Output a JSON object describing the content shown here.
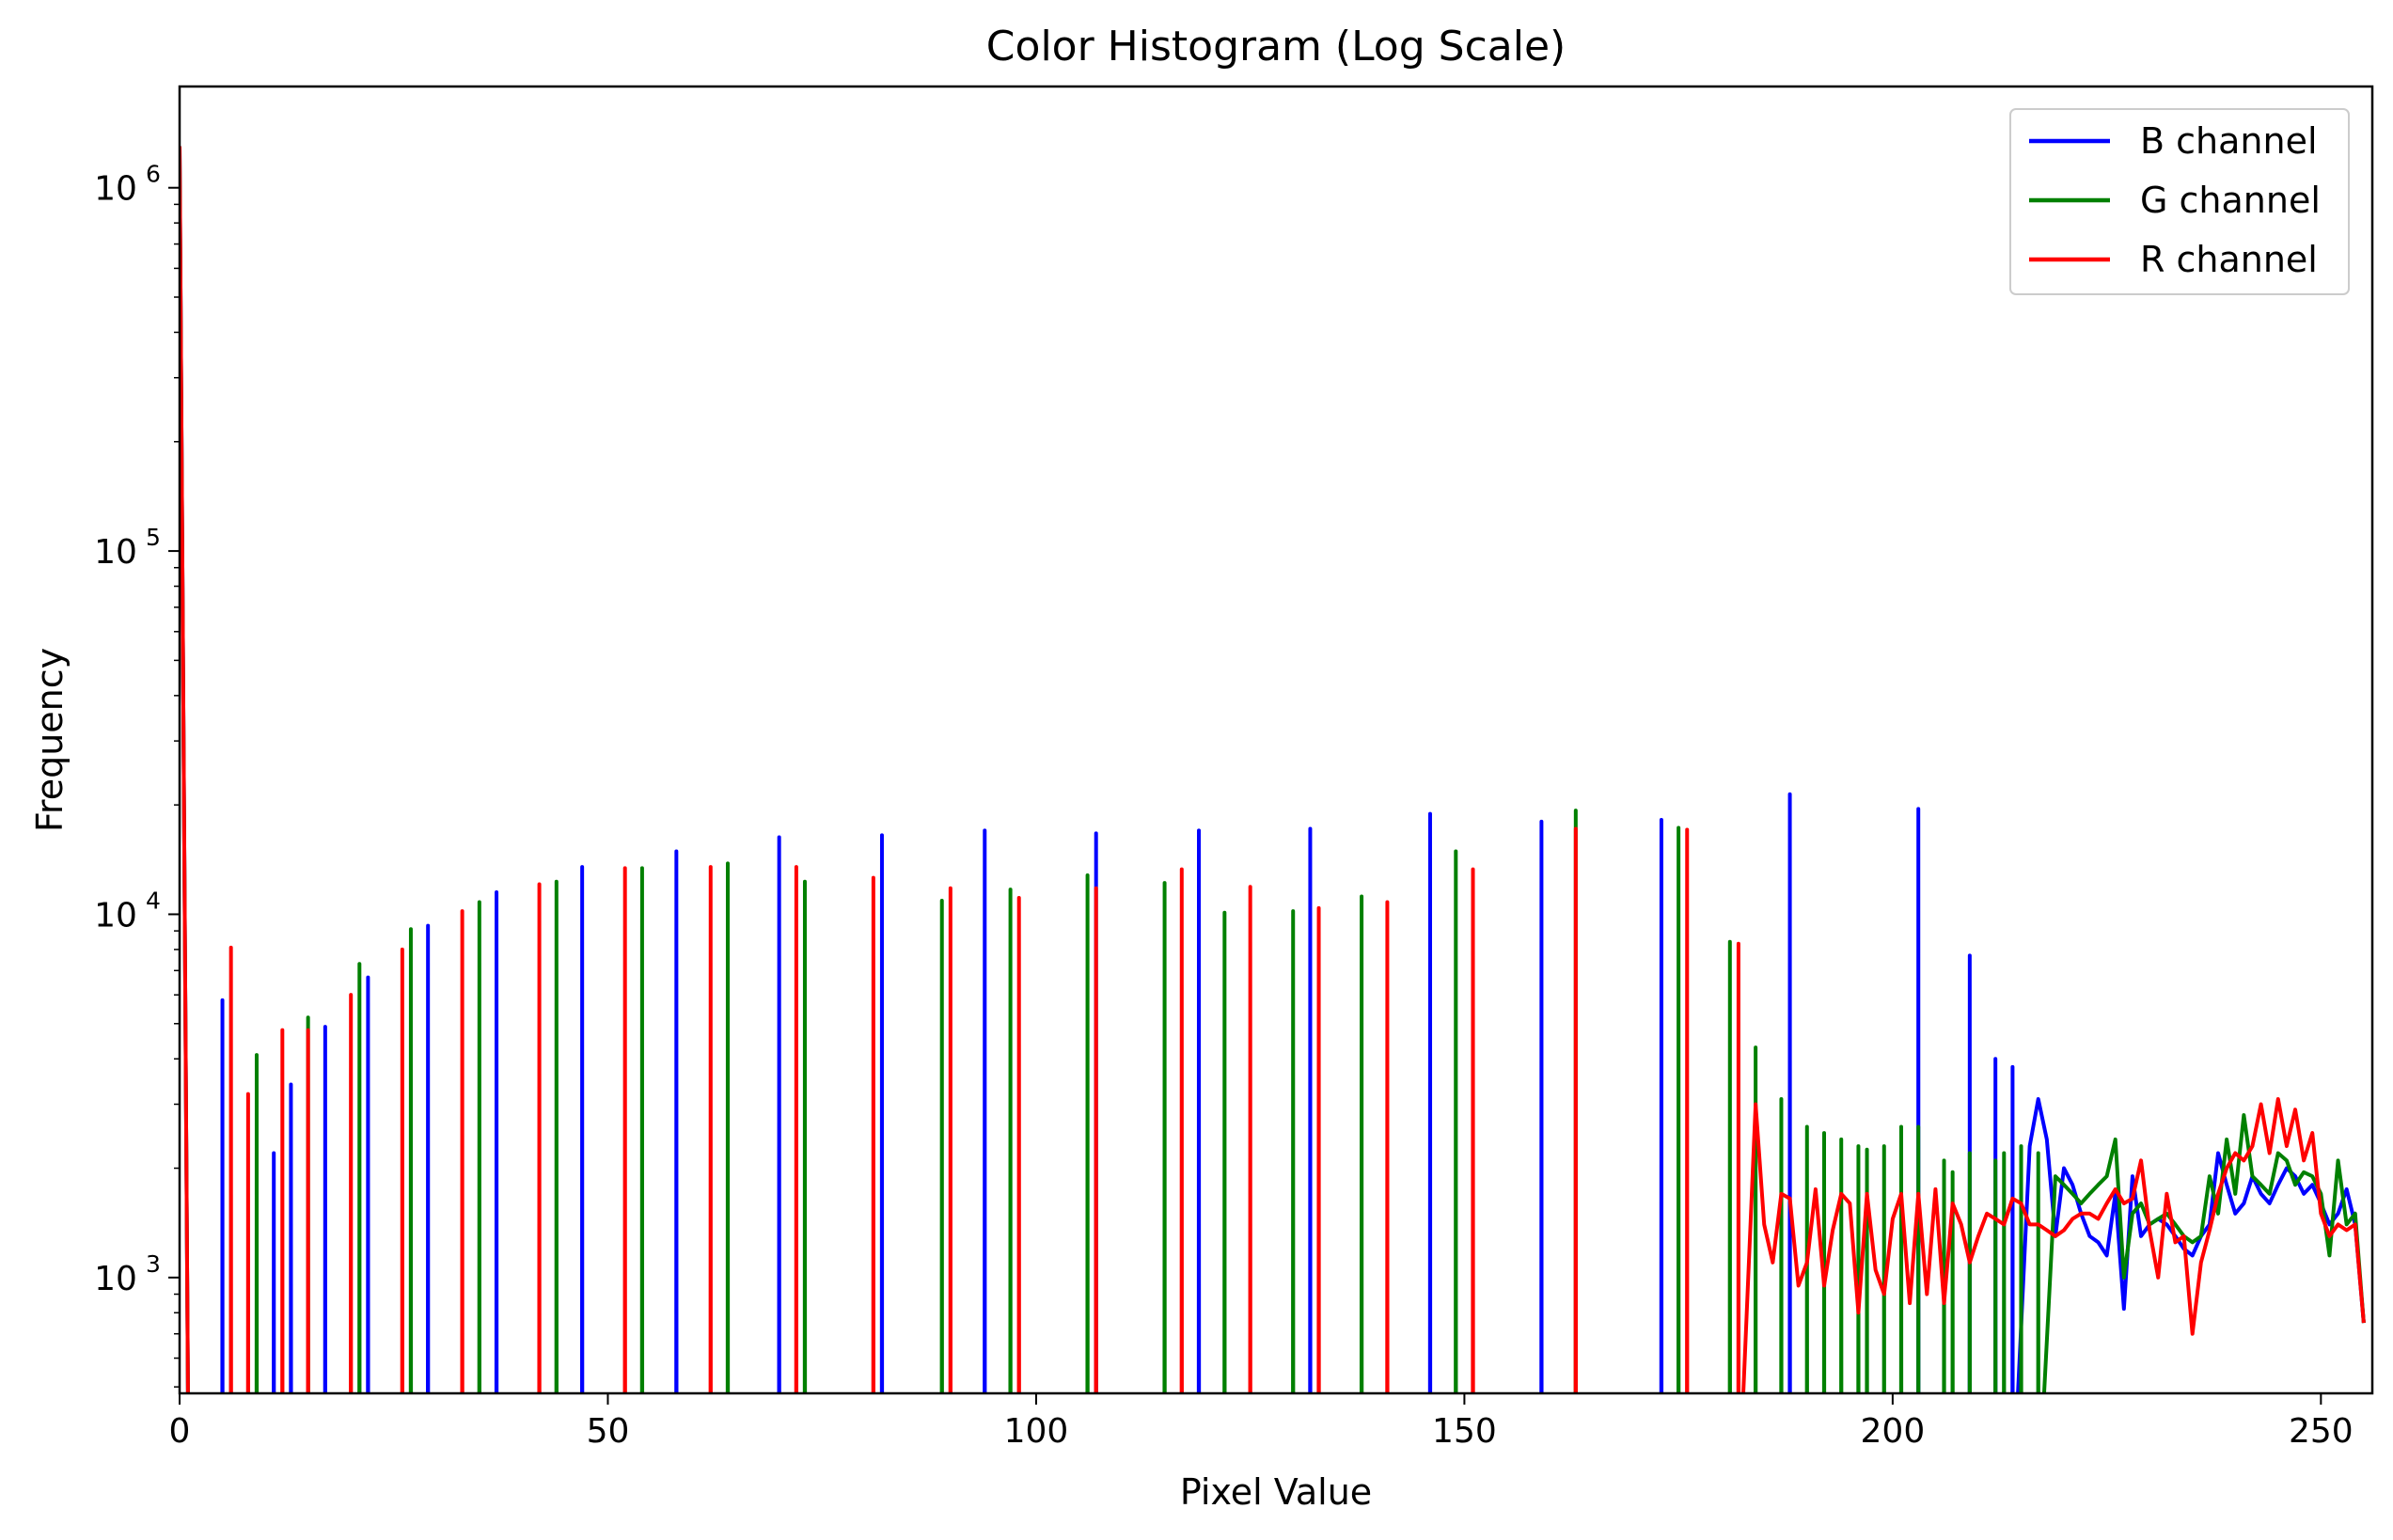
{
  "chart_data": {
    "type": "line",
    "title": "Color Histogram (Log Scale)",
    "xlabel": "Pixel Value",
    "ylabel": "Frequency",
    "xlim": [
      0,
      256
    ],
    "ylim": [
      480,
      1900000
    ],
    "yscale": "log",
    "grid": false,
    "legend_position": "top-right",
    "xticks": [
      0,
      50,
      100,
      150,
      200,
      250
    ],
    "xtick_labels": [
      "0",
      "50",
      "100",
      "150",
      "200",
      "250"
    ],
    "yticks": [
      1000,
      10000,
      100000,
      1000000
    ],
    "ytick_labels": [
      {
        "base": "10",
        "exp": "3"
      },
      {
        "base": "10",
        "exp": "4"
      },
      {
        "base": "10",
        "exp": "5"
      },
      {
        "base": "10",
        "exp": "6"
      }
    ],
    "series": [
      {
        "name": "B channel",
        "color": "#0000ff",
        "head": [
          [
            0,
            1300000
          ],
          [
            1,
            400
          ]
        ],
        "spikes": [
          [
            5,
            5800
          ],
          [
            11,
            2200
          ],
          [
            13,
            3400
          ],
          [
            17,
            4900
          ],
          [
            22,
            6700
          ],
          [
            29,
            9300
          ],
          [
            37,
            11500
          ],
          [
            47,
            13500
          ],
          [
            58,
            14900
          ],
          [
            70,
            16300
          ],
          [
            82,
            16500
          ],
          [
            94,
            17000
          ],
          [
            107,
            16700
          ],
          [
            119,
            17000
          ],
          [
            132,
            17200
          ],
          [
            146,
            18900
          ],
          [
            159,
            18000
          ],
          [
            173,
            18200
          ],
          [
            188,
            21400
          ],
          [
            203,
            19500
          ],
          [
            209,
            7700
          ],
          [
            212,
            4000
          ],
          [
            214,
            3800
          ]
        ],
        "tail": [
          [
            216,
            2300
          ],
          [
            217,
            3100
          ],
          [
            218,
            2400
          ],
          [
            219,
            1300
          ],
          [
            220,
            2000
          ],
          [
            221,
            1800
          ],
          [
            222,
            1500
          ],
          [
            223,
            1300
          ],
          [
            224,
            1250
          ],
          [
            225,
            1150
          ],
          [
            226,
            1700
          ],
          [
            227,
            820
          ],
          [
            228,
            1900
          ],
          [
            229,
            1300
          ],
          [
            230,
            1400
          ],
          [
            231,
            1450
          ],
          [
            232,
            1400
          ],
          [
            233,
            1300
          ],
          [
            234,
            1200
          ],
          [
            235,
            1150
          ],
          [
            236,
            1300
          ],
          [
            237,
            1400
          ],
          [
            238,
            2200
          ],
          [
            239,
            1800
          ],
          [
            240,
            1500
          ],
          [
            241,
            1600
          ],
          [
            242,
            1900
          ],
          [
            243,
            1700
          ],
          [
            244,
            1600
          ],
          [
            245,
            1800
          ],
          [
            246,
            2000
          ],
          [
            247,
            1900
          ],
          [
            248,
            1700
          ],
          [
            249,
            1800
          ],
          [
            250,
            1600
          ],
          [
            251,
            1400
          ],
          [
            252,
            1500
          ],
          [
            253,
            1750
          ],
          [
            254,
            1400
          ],
          [
            255,
            750
          ]
        ]
      },
      {
        "name": "G channel",
        "color": "#008000",
        "head": [
          [
            0,
            1300000
          ],
          [
            1,
            400
          ]
        ],
        "spikes": [
          [
            9,
            4100
          ],
          [
            15,
            5200
          ],
          [
            21,
            7300
          ],
          [
            27,
            9100
          ],
          [
            35,
            10800
          ],
          [
            44,
            12300
          ],
          [
            54,
            13400
          ],
          [
            64,
            13800
          ],
          [
            73,
            12300
          ],
          [
            89,
            10900
          ],
          [
            97,
            11700
          ],
          [
            106,
            12800
          ],
          [
            115,
            12200
          ],
          [
            122,
            10100
          ],
          [
            130,
            10200
          ],
          [
            138,
            11200
          ],
          [
            149,
            14900
          ],
          [
            163,
            19300
          ],
          [
            175,
            17300
          ],
          [
            181,
            8400
          ],
          [
            184,
            4300
          ],
          [
            187,
            3100
          ],
          [
            190,
            2600
          ],
          [
            192,
            2500
          ],
          [
            194,
            2400
          ],
          [
            196,
            2300
          ],
          [
            197,
            2250
          ],
          [
            199,
            2300
          ],
          [
            201,
            2600
          ],
          [
            203,
            2600
          ],
          [
            206,
            2100
          ],
          [
            207,
            1950
          ],
          [
            209,
            2200
          ],
          [
            212,
            2100
          ],
          [
            213,
            2200
          ],
          [
            215,
            2300
          ],
          [
            217,
            2200
          ],
          [
            219,
            1900
          ],
          [
            226,
            2400
          ],
          [
            237,
            1900
          ],
          [
            239,
            2400
          ],
          [
            241,
            2800
          ],
          [
            248,
            1950
          ],
          [
            252,
            2100
          ]
        ],
        "tail": [
          [
            219,
            1900
          ],
          [
            220,
            1800
          ],
          [
            221,
            1700
          ],
          [
            222,
            1600
          ],
          [
            223,
            1700
          ],
          [
            224,
            1800
          ],
          [
            225,
            1900
          ],
          [
            226,
            2400
          ],
          [
            227,
            1000
          ],
          [
            228,
            1500
          ],
          [
            229,
            1600
          ],
          [
            230,
            1400
          ],
          [
            231,
            1450
          ],
          [
            232,
            1500
          ],
          [
            233,
            1400
          ],
          [
            234,
            1300
          ],
          [
            235,
            1250
          ],
          [
            236,
            1300
          ],
          [
            237,
            1900
          ],
          [
            238,
            1500
          ],
          [
            239,
            2400
          ],
          [
            240,
            1700
          ],
          [
            241,
            2800
          ],
          [
            242,
            1900
          ],
          [
            243,
            1800
          ],
          [
            244,
            1700
          ],
          [
            245,
            2200
          ],
          [
            246,
            2100
          ],
          [
            247,
            1800
          ],
          [
            248,
            1950
          ],
          [
            249,
            1900
          ],
          [
            250,
            1700
          ],
          [
            251,
            1150
          ],
          [
            252,
            2100
          ],
          [
            253,
            1400
          ],
          [
            254,
            1500
          ],
          [
            255,
            750
          ]
        ]
      },
      {
        "name": "R channel",
        "color": "#ff0000",
        "head": [
          [
            0,
            1300000
          ],
          [
            1,
            400
          ]
        ],
        "spikes": [
          [
            6,
            8100
          ],
          [
            8,
            3200
          ],
          [
            12,
            4800
          ],
          [
            15,
            4800
          ],
          [
            20,
            6000
          ],
          [
            26,
            8000
          ],
          [
            33,
            10200
          ],
          [
            42,
            12100
          ],
          [
            52,
            13400
          ],
          [
            62,
            13500
          ],
          [
            72,
            13500
          ],
          [
            81,
            12600
          ],
          [
            90,
            11800
          ],
          [
            98,
            11100
          ],
          [
            107,
            11800
          ],
          [
            117,
            13300
          ],
          [
            125,
            11900
          ],
          [
            133,
            10400
          ],
          [
            141,
            10800
          ],
          [
            151,
            13300
          ],
          [
            163,
            17200
          ],
          [
            176,
            17100
          ],
          [
            182,
            8300
          ]
        ],
        "tail": [
          [
            184,
            3000
          ],
          [
            185,
            1400
          ],
          [
            186,
            1100
          ],
          [
            187,
            1700
          ],
          [
            188,
            1650
          ],
          [
            189,
            950
          ],
          [
            190,
            1100
          ],
          [
            191,
            1750
          ],
          [
            192,
            950
          ],
          [
            193,
            1350
          ],
          [
            194,
            1700
          ],
          [
            195,
            1600
          ],
          [
            196,
            800
          ],
          [
            197,
            1700
          ],
          [
            198,
            1050
          ],
          [
            199,
            900
          ],
          [
            200,
            1450
          ],
          [
            201,
            1700
          ],
          [
            202,
            850
          ],
          [
            203,
            1700
          ],
          [
            204,
            900
          ],
          [
            205,
            1750
          ],
          [
            206,
            850
          ],
          [
            207,
            1600
          ],
          [
            208,
            1400
          ],
          [
            209,
            1100
          ],
          [
            210,
            1300
          ],
          [
            211,
            1500
          ],
          [
            212,
            1450
          ],
          [
            213,
            1400
          ],
          [
            214,
            1650
          ],
          [
            215,
            1600
          ],
          [
            216,
            1400
          ],
          [
            217,
            1400
          ],
          [
            218,
            1350
          ],
          [
            219,
            1300
          ],
          [
            220,
            1350
          ],
          [
            221,
            1450
          ],
          [
            222,
            1500
          ],
          [
            223,
            1500
          ],
          [
            224,
            1450
          ],
          [
            225,
            1600
          ],
          [
            226,
            1750
          ],
          [
            227,
            1600
          ],
          [
            228,
            1650
          ],
          [
            229,
            2100
          ],
          [
            230,
            1350
          ],
          [
            231,
            1000
          ],
          [
            232,
            1700
          ],
          [
            233,
            1250
          ],
          [
            234,
            1300
          ],
          [
            235,
            700
          ],
          [
            236,
            1100
          ],
          [
            237,
            1350
          ],
          [
            238,
            1700
          ],
          [
            239,
            2000
          ],
          [
            240,
            2200
          ],
          [
            241,
            2100
          ],
          [
            242,
            2300
          ],
          [
            243,
            3000
          ],
          [
            244,
            2200
          ],
          [
            245,
            3100
          ],
          [
            246,
            2300
          ],
          [
            247,
            2900
          ],
          [
            248,
            2100
          ],
          [
            249,
            2500
          ],
          [
            250,
            1500
          ],
          [
            251,
            1300
          ],
          [
            252,
            1400
          ],
          [
            253,
            1350
          ],
          [
            254,
            1400
          ],
          [
            255,
            750
          ]
        ]
      }
    ]
  }
}
